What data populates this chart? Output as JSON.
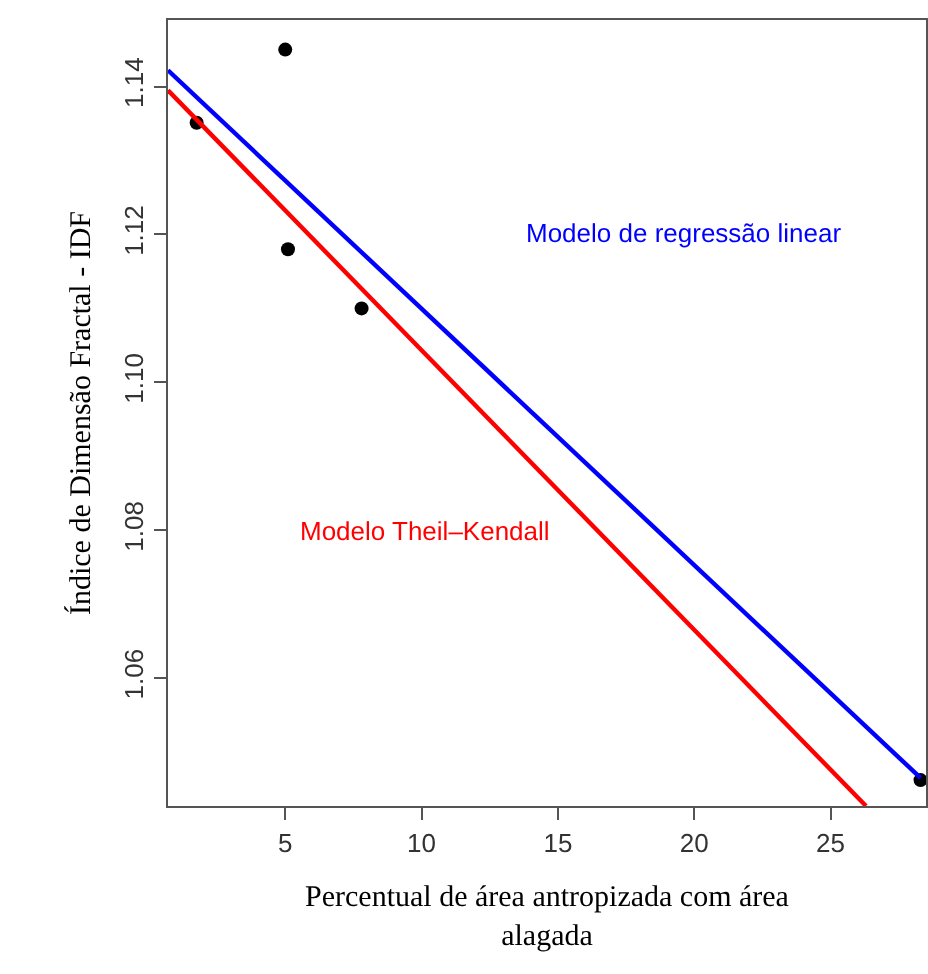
{
  "chart_data": {
    "type": "scatter",
    "xlabel": "Percentual de área antropizada com área\nalagada",
    "ylabel": "Índice de Dimensão Fractal - IDF",
    "series": [
      {
        "color": "#000000",
        "marker": "circle",
        "x": [
          1.75,
          5.0,
          5.1,
          7.8,
          28.3
        ],
        "values": [
          1.1351,
          1.145,
          1.118,
          1.11,
          1.0462
        ]
      },
      {
        "type": "line",
        "name": "Modelo de regressão linear",
        "color": "#0000ff",
        "marker": "none",
        "x": [
          0.7,
          28.3
        ],
        "values": [
          1.1422,
          1.0465
        ]
      },
      {
        "type": "line",
        "name": "Modelo Theil–Kendall",
        "color": "#ff0000",
        "marker": "none",
        "x": [
          0.7,
          26.3
        ],
        "values": [
          1.1395,
          1.0427
        ]
      }
    ],
    "xlim": [
      0.7,
      28.5
    ],
    "ylim": [
      1.0427,
      1.149
    ],
    "xticks": [
      5,
      10,
      15,
      20,
      25
    ],
    "yticks": [
      1.06,
      1.08,
      {
        "value": 1.1,
        "label": "1.10"
      },
      1.12,
      1.14
    ],
    "grid": false,
    "legend": false,
    "line_style": "solid"
  }
}
